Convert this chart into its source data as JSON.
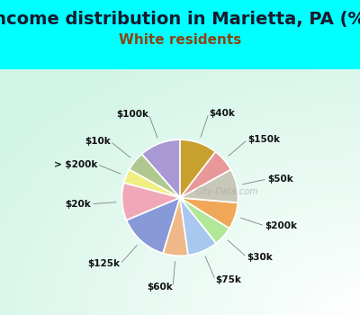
{
  "title": "Income distribution in Marietta, PA (%)",
  "subtitle": "White residents",
  "title_fontsize": 14,
  "subtitle_fontsize": 11,
  "top_bg_color": "#00FFFF",
  "chart_bg_color": "#e0f5ee",
  "labels": [
    "$100k",
    "$10k",
    "> $200k",
    "$20k",
    "$125k",
    "$60k",
    "$75k",
    "$30k",
    "$200k",
    "$50k",
    "$150k",
    "$40k"
  ],
  "sizes": [
    11.5,
    5.5,
    4.0,
    10.5,
    14.0,
    7.0,
    8.5,
    5.5,
    7.5,
    9.5,
    6.5,
    10.5
  ],
  "colors": [
    "#a899d4",
    "#b0c890",
    "#f0ef80",
    "#f0a8b8",
    "#8899d8",
    "#f0b888",
    "#a8c8f0",
    "#b0e898",
    "#f0a858",
    "#c8c8b8",
    "#e89898",
    "#c8a030"
  ],
  "startangle": 90,
  "wedge_lw": 1.2,
  "wedge_ec": "white",
  "label_fontsize": 7.5
}
